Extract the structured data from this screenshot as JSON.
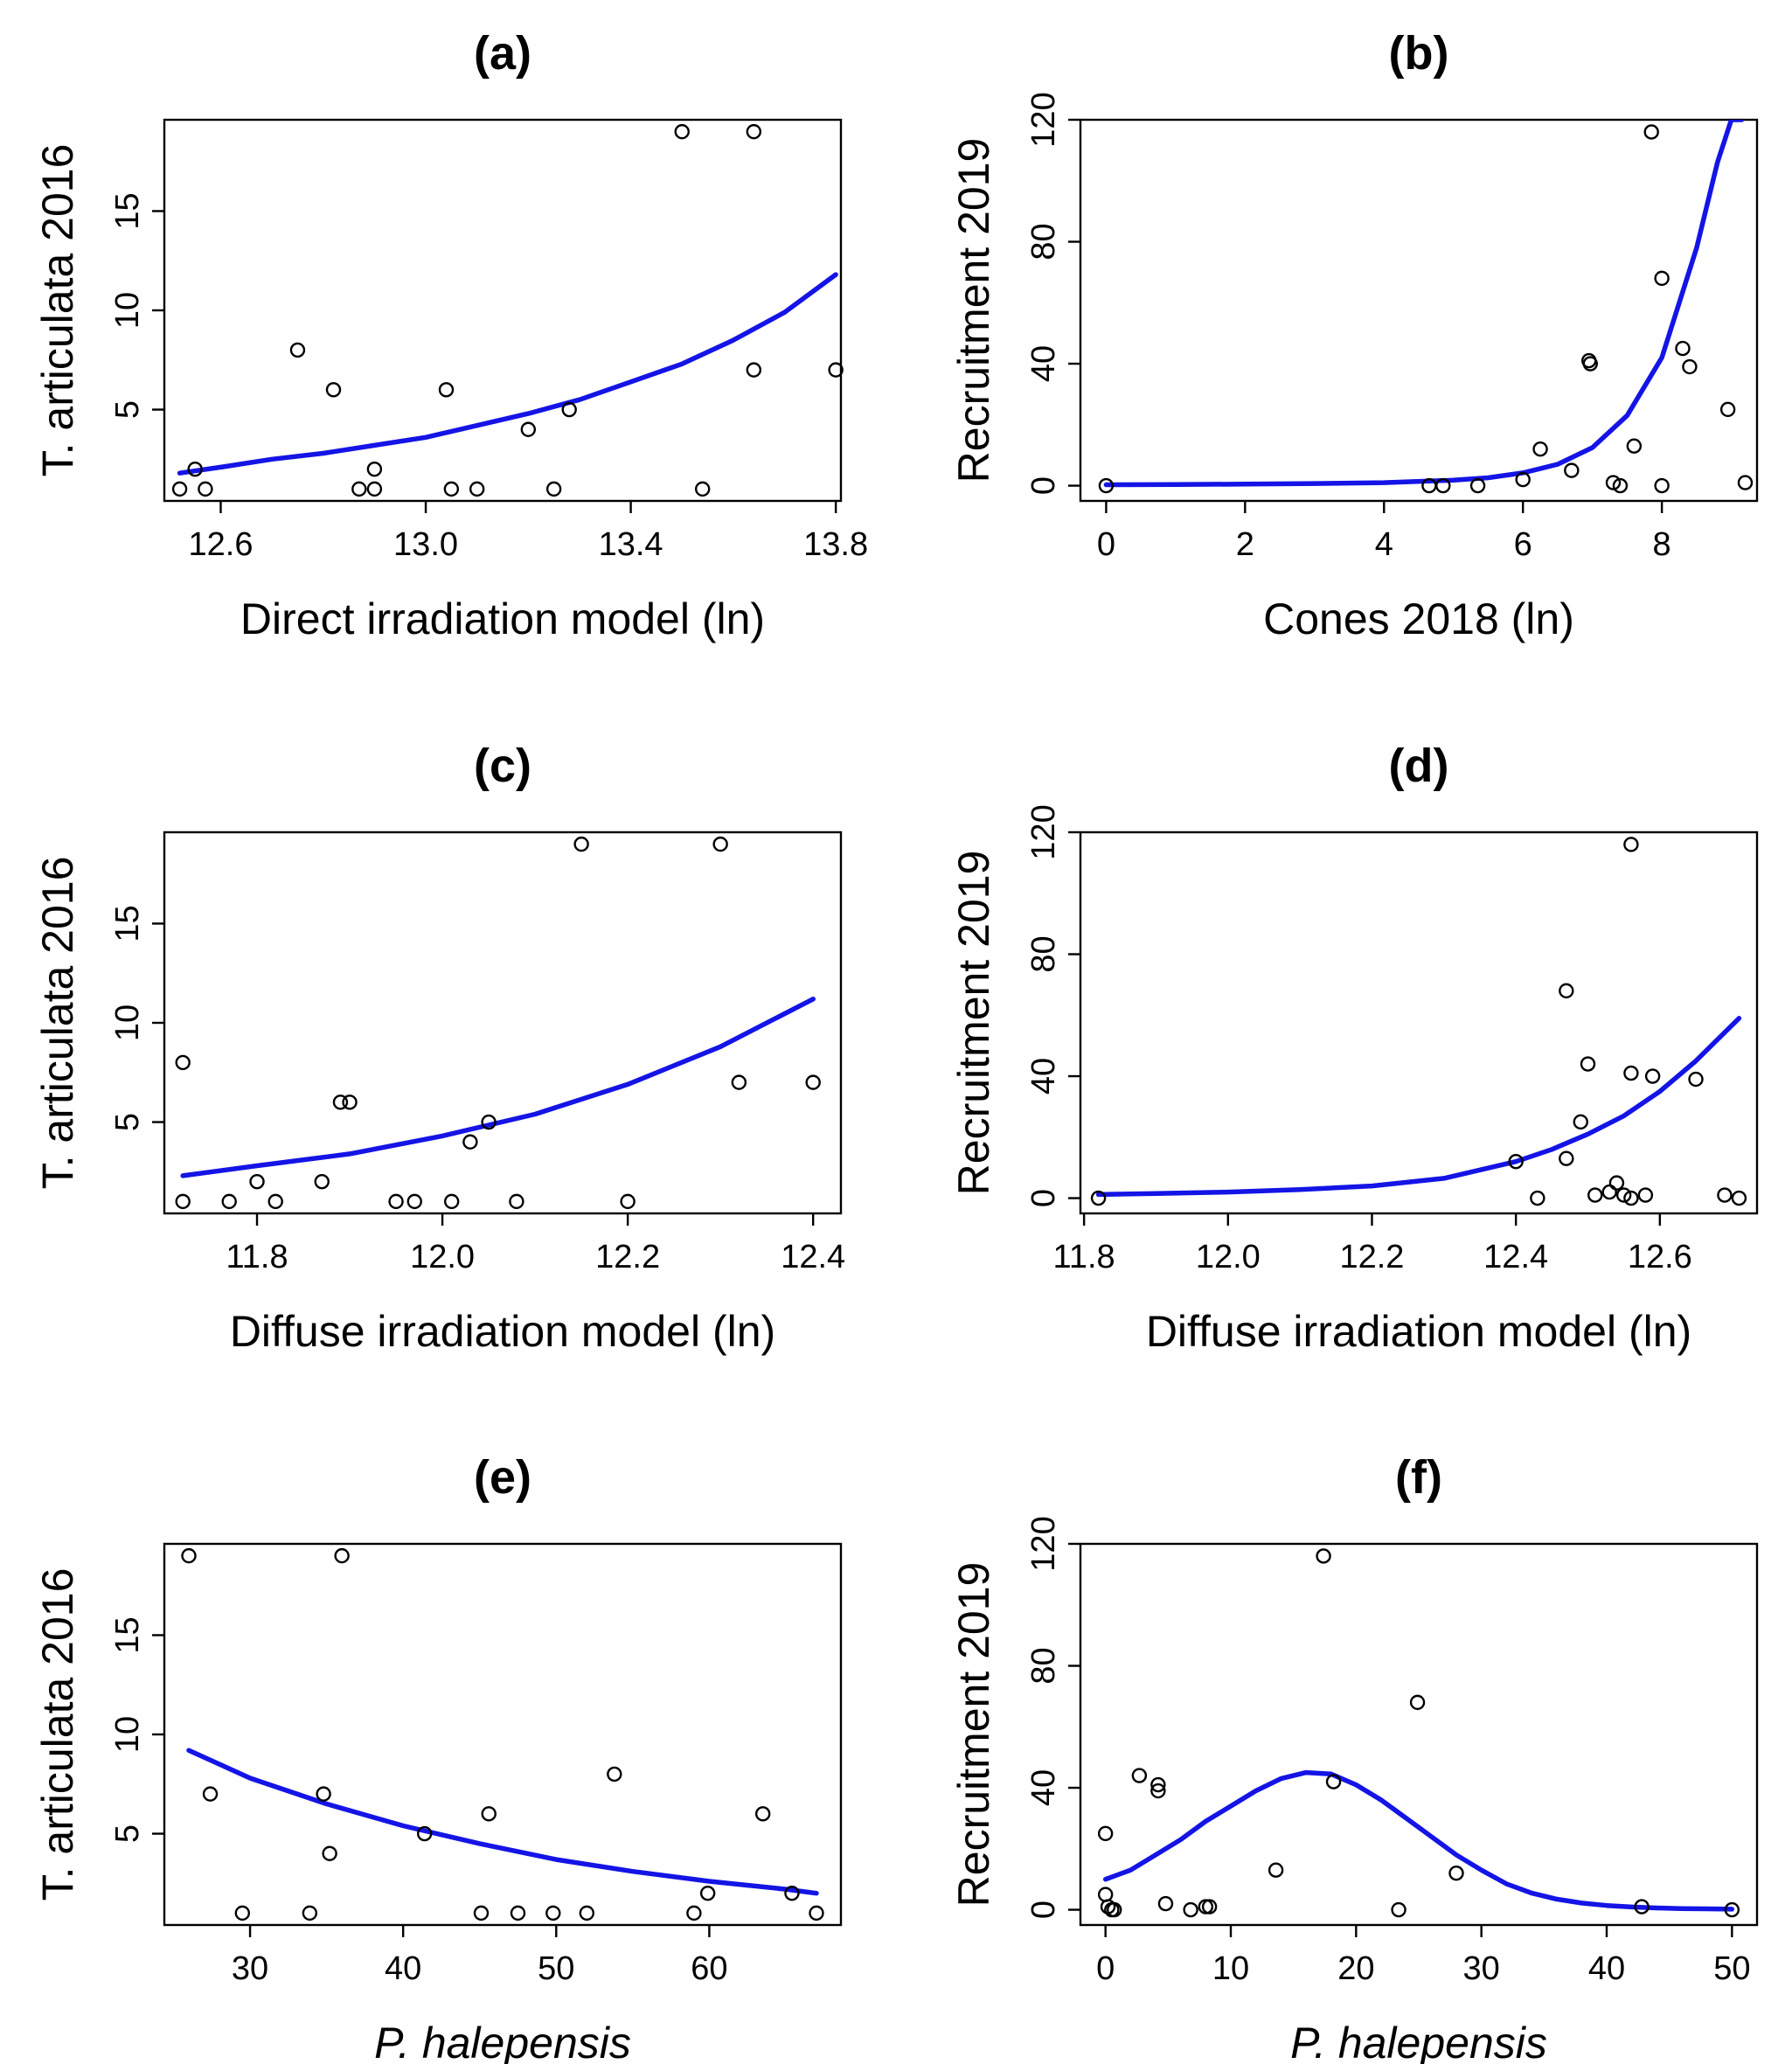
{
  "figure": {
    "colors": {
      "fit_line": "#1414e6",
      "points": "#000000",
      "axes": "#000000",
      "background": "#ffffff"
    }
  },
  "chart_data": [
    {
      "id": "a",
      "type": "scatter",
      "title": "(a)",
      "xlabel": "Direct irradiation model (ln)",
      "ylabel": "T. articulata 2016",
      "xlim": [
        12.49,
        13.81
      ],
      "ylim": [
        0.4,
        19.6
      ],
      "xticks": [
        12.6,
        13.0,
        13.4,
        13.8
      ],
      "yticks": [
        5,
        10,
        15
      ],
      "xtick_labels": [
        "12.6",
        "13.0",
        "13.4",
        "13.8"
      ],
      "ytick_labels": [
        "5",
        "10",
        "15"
      ],
      "points": [
        [
          12.52,
          1
        ],
        [
          12.55,
          2
        ],
        [
          12.57,
          1
        ],
        [
          12.75,
          8
        ],
        [
          12.82,
          6
        ],
        [
          12.87,
          1
        ],
        [
          12.9,
          2
        ],
        [
          12.9,
          1
        ],
        [
          13.04,
          6
        ],
        [
          13.05,
          1
        ],
        [
          13.1,
          1
        ],
        [
          13.2,
          4
        ],
        [
          13.25,
          1
        ],
        [
          13.28,
          5
        ],
        [
          13.5,
          19
        ],
        [
          13.54,
          1
        ],
        [
          13.64,
          19
        ],
        [
          13.64,
          7
        ],
        [
          13.8,
          7
        ]
      ],
      "fit": {
        "name": "fitted curve",
        "x": [
          12.52,
          12.6,
          12.7,
          12.8,
          12.9,
          13.0,
          13.1,
          13.2,
          13.3,
          13.4,
          13.5,
          13.6,
          13.7,
          13.8
        ],
        "y": [
          1.8,
          2.1,
          2.5,
          2.8,
          3.2,
          3.6,
          4.2,
          4.8,
          5.5,
          6.4,
          7.3,
          8.5,
          9.9,
          11.8
        ]
      }
    },
    {
      "id": "b",
      "type": "scatter",
      "title": "(b)",
      "xlabel": "Cones 2018 (ln)",
      "ylabel": "Recruitment 2019",
      "xlim": [
        -0.37,
        9.37
      ],
      "ylim": [
        -5,
        120
      ],
      "xticks": [
        0,
        2,
        4,
        6,
        8
      ],
      "yticks": [
        0,
        40,
        80,
        120
      ],
      "xtick_labels": [
        "0",
        "2",
        "4",
        "6",
        "8"
      ],
      "ytick_labels": [
        "0",
        "40",
        "80",
        "120"
      ],
      "points": [
        [
          0,
          0
        ],
        [
          4.65,
          0
        ],
        [
          4.85,
          0
        ],
        [
          5.35,
          0
        ],
        [
          6.0,
          2
        ],
        [
          6.25,
          12
        ],
        [
          6.7,
          5
        ],
        [
          6.95,
          41
        ],
        [
          6.97,
          40
        ],
        [
          7.3,
          1
        ],
        [
          7.4,
          0
        ],
        [
          7.6,
          13
        ],
        [
          7.85,
          116
        ],
        [
          8.0,
          0
        ],
        [
          8.0,
          68
        ],
        [
          8.3,
          45
        ],
        [
          8.4,
          39
        ],
        [
          8.95,
          25
        ],
        [
          9.2,
          1
        ]
      ],
      "fit": {
        "name": "fitted curve",
        "x": [
          0,
          1,
          2,
          3,
          4,
          5,
          5.5,
          6,
          6.5,
          7,
          7.5,
          8,
          8.5,
          8.8,
          9.0,
          9.15
        ],
        "y": [
          0.3,
          0.4,
          0.5,
          0.7,
          1.0,
          1.8,
          2.6,
          4.2,
          7,
          12.5,
          23,
          42,
          78,
          106,
          120,
          120
        ]
      }
    },
    {
      "id": "c",
      "type": "scatter",
      "title": "(c)",
      "xlabel": "Diffuse irradiation model (ln)",
      "ylabel": "T. articulata 2016",
      "xlim": [
        11.7,
        12.43
      ],
      "ylim": [
        0.4,
        19.6
      ],
      "xticks": [
        11.8,
        12.0,
        12.2,
        12.4
      ],
      "yticks": [
        5,
        10,
        15
      ],
      "xtick_labels": [
        "11.8",
        "12.0",
        "12.2",
        "12.4"
      ],
      "ytick_labels": [
        "5",
        "10",
        "15"
      ],
      "points": [
        [
          11.72,
          1
        ],
        [
          11.72,
          8
        ],
        [
          11.77,
          1
        ],
        [
          11.8,
          2
        ],
        [
          11.82,
          1
        ],
        [
          11.87,
          2
        ],
        [
          11.89,
          6
        ],
        [
          11.9,
          6
        ],
        [
          11.95,
          1
        ],
        [
          11.97,
          1
        ],
        [
          12.01,
          1
        ],
        [
          12.03,
          4
        ],
        [
          12.05,
          5
        ],
        [
          12.08,
          1
        ],
        [
          12.15,
          19
        ],
        [
          12.2,
          1
        ],
        [
          12.3,
          19
        ],
        [
          12.32,
          7
        ],
        [
          12.4,
          7
        ]
      ],
      "fit": {
        "name": "fitted curve",
        "x": [
          11.72,
          11.8,
          11.9,
          12.0,
          12.1,
          12.2,
          12.3,
          12.4
        ],
        "y": [
          2.3,
          2.8,
          3.4,
          4.3,
          5.4,
          6.9,
          8.8,
          11.2
        ]
      }
    },
    {
      "id": "d",
      "type": "scatter",
      "title": "(d)",
      "xlabel": "Diffuse irradiation model (ln)",
      "ylabel": "Recruitment 2019",
      "xlim": [
        11.795,
        12.735
      ],
      "ylim": [
        -5,
        120
      ],
      "xticks": [
        11.8,
        12.0,
        12.2,
        12.4,
        12.6
      ],
      "yticks": [
        0,
        40,
        80,
        120
      ],
      "xtick_labels": [
        "11.8",
        "12.0",
        "12.2",
        "12.4",
        "12.6"
      ],
      "ytick_labels": [
        "0",
        "40",
        "80",
        "120"
      ],
      "points": [
        [
          11.82,
          0
        ],
        [
          12.4,
          12
        ],
        [
          12.43,
          0
        ],
        [
          12.47,
          68
        ],
        [
          12.47,
          13
        ],
        [
          12.49,
          25
        ],
        [
          12.5,
          44
        ],
        [
          12.51,
          1
        ],
        [
          12.53,
          2
        ],
        [
          12.54,
          5
        ],
        [
          12.55,
          1
        ],
        [
          12.56,
          0
        ],
        [
          12.56,
          116
        ],
        [
          12.56,
          41
        ],
        [
          12.58,
          1
        ],
        [
          12.59,
          40
        ],
        [
          12.65,
          39
        ],
        [
          12.69,
          1
        ],
        [
          12.71,
          0
        ]
      ],
      "fit": {
        "name": "fitted curve",
        "x": [
          11.82,
          11.9,
          12.0,
          12.1,
          12.2,
          12.3,
          12.4,
          12.45,
          12.5,
          12.55,
          12.6,
          12.65,
          12.71
        ],
        "y": [
          1.2,
          1.5,
          2.0,
          2.8,
          4.0,
          6.5,
          12,
          16,
          21,
          27,
          35,
          45,
          59
        ]
      }
    },
    {
      "id": "e",
      "type": "scatter",
      "title": "(e)",
      "xlabel": "P. halepensis",
      "ylabel": "T. articulata 2016",
      "xlim": [
        24.4,
        68.6
      ],
      "ylim": [
        0.4,
        19.6
      ],
      "xticks": [
        30,
        40,
        50,
        60
      ],
      "yticks": [
        5,
        10,
        15
      ],
      "xtick_labels": [
        "30",
        "40",
        "50",
        "60"
      ],
      "ytick_labels": [
        "5",
        "10",
        "15"
      ],
      "points": [
        [
          26,
          19
        ],
        [
          27.4,
          7
        ],
        [
          29.5,
          1
        ],
        [
          33.9,
          1
        ],
        [
          34.8,
          7
        ],
        [
          35.2,
          4
        ],
        [
          36,
          19
        ],
        [
          41.4,
          5
        ],
        [
          45.1,
          1
        ],
        [
          45.6,
          6
        ],
        [
          47.5,
          1
        ],
        [
          49.8,
          1
        ],
        [
          52,
          1
        ],
        [
          53.8,
          8
        ],
        [
          59,
          1
        ],
        [
          59.9,
          2
        ],
        [
          63.5,
          6
        ],
        [
          65.4,
          2
        ],
        [
          67,
          1
        ]
      ],
      "fit": {
        "name": "fitted curve",
        "x": [
          26,
          30,
          35,
          40,
          45,
          50,
          55,
          60,
          65,
          67
        ],
        "y": [
          9.2,
          7.8,
          6.5,
          5.4,
          4.5,
          3.7,
          3.1,
          2.6,
          2.2,
          2.0
        ]
      }
    },
    {
      "id": "f",
      "type": "scatter",
      "title": "(f)",
      "xlabel": "P. halepensis",
      "ylabel": "Recruitment 2019",
      "xlim": [
        -2,
        52
      ],
      "ylim": [
        -5,
        120
      ],
      "xticks": [
        0,
        10,
        20,
        30,
        40,
        50
      ],
      "yticks": [
        0,
        40,
        80,
        120
      ],
      "xtick_labels": [
        "0",
        "10",
        "20",
        "30",
        "40",
        "50"
      ],
      "ytick_labels": [
        "0",
        "40",
        "80",
        "120"
      ],
      "points": [
        [
          0,
          25
        ],
        [
          0,
          5
        ],
        [
          0.2,
          1
        ],
        [
          0.5,
          0
        ],
        [
          0.7,
          0
        ],
        [
          2.7,
          44
        ],
        [
          4.2,
          41
        ],
        [
          4.2,
          39
        ],
        [
          4.8,
          2
        ],
        [
          6.8,
          0
        ],
        [
          8,
          1
        ],
        [
          8.3,
          1
        ],
        [
          13.6,
          13
        ],
        [
          17.4,
          116
        ],
        [
          18.2,
          42
        ],
        [
          23.4,
          0
        ],
        [
          24.9,
          68
        ],
        [
          28,
          12
        ],
        [
          42.8,
          1
        ],
        [
          50,
          0
        ]
      ],
      "fit": {
        "name": "fitted curve",
        "x": [
          0,
          2,
          4,
          6,
          8,
          10,
          12,
          14,
          16,
          18,
          20,
          22,
          24,
          26,
          28,
          30,
          32,
          34,
          36,
          38,
          40,
          42,
          44,
          46,
          48,
          50
        ],
        "y": [
          10,
          13,
          18,
          23,
          29,
          34,
          39,
          43,
          45,
          44.5,
          41,
          36,
          30,
          24,
          18,
          13,
          8.5,
          5.5,
          3.5,
          2.2,
          1.4,
          0.9,
          0.6,
          0.4,
          0.3,
          0.2
        ]
      }
    }
  ]
}
